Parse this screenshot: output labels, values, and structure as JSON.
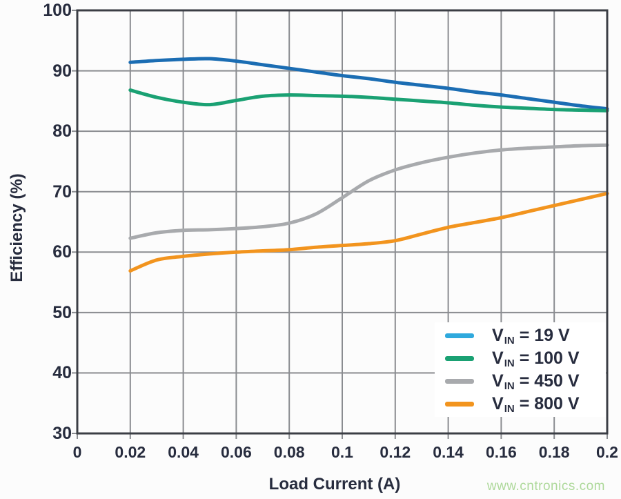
{
  "watermark": "www.cntronics.com",
  "axis": {
    "x_title": "Load Current (A)",
    "y_title": "Efficiency (%)"
  },
  "legend": {
    "items": [
      {
        "prefix": "V",
        "sub": "IN",
        "rest": "= 19 V",
        "swatch_color": "#2fa9dd"
      },
      {
        "prefix": "V",
        "sub": "IN",
        "rest": "= 100 V",
        "swatch_color": "#1aa173"
      },
      {
        "prefix": "V",
        "sub": "IN",
        "rest": "= 450 V",
        "swatch_color": "#a8aaad"
      },
      {
        "prefix": "V",
        "sub": "IN",
        "rest": "= 800 V",
        "swatch_color": "#f2941e"
      }
    ]
  },
  "colors": {
    "background": "#fcfcfc",
    "grid": "#8a8c90",
    "axis_border": "#3b3e45",
    "text": "#272c3e",
    "watermark_green": "#aed99b"
  },
  "chart_data": {
    "type": "line",
    "title": "",
    "xlabel": "Load Current (A)",
    "ylabel": "Efficiency (%)",
    "xlim": [
      0,
      0.2
    ],
    "ylim": [
      30,
      100
    ],
    "grid": true,
    "legend_position": "lower-right",
    "x_tick_values": [
      0,
      0.02,
      0.04,
      0.06,
      0.08,
      0.1,
      0.12,
      0.14,
      0.16,
      0.18,
      0.2
    ],
    "x_tick_labels": [
      "0",
      "0.02",
      "0.04",
      "0.06",
      "0.08",
      "0.1",
      "0.12",
      "0.14",
      "0.16",
      "0.18",
      "0.2"
    ],
    "y_tick_values": [
      30,
      40,
      50,
      60,
      70,
      80,
      90,
      100
    ],
    "y_tick_labels": [
      "30",
      "40",
      "50",
      "60",
      "70",
      "80",
      "90",
      "100"
    ],
    "x": [
      0.02,
      0.03,
      0.04,
      0.05,
      0.06,
      0.07,
      0.08,
      0.09,
      0.1,
      0.11,
      0.12,
      0.13,
      0.14,
      0.15,
      0.16,
      0.17,
      0.18,
      0.19,
      0.2
    ],
    "series": [
      {
        "name": "VIN = 19 V",
        "color": "#1b6db3",
        "values": [
          91.4,
          91.7,
          91.9,
          92.0,
          91.6,
          91.0,
          90.4,
          89.8,
          89.2,
          88.7,
          88.1,
          87.6,
          87.1,
          86.5,
          86.0,
          85.4,
          84.8,
          84.2,
          83.7
        ]
      },
      {
        "name": "VIN = 100 V",
        "color": "#1aa173",
        "values": [
          86.8,
          85.6,
          84.8,
          84.4,
          85.1,
          85.8,
          86.0,
          85.9,
          85.8,
          85.6,
          85.3,
          85.0,
          84.7,
          84.3,
          84.0,
          83.8,
          83.6,
          83.5,
          83.4
        ]
      },
      {
        "name": "VIN = 450 V",
        "color": "#a8aaad",
        "values": [
          62.3,
          63.2,
          63.6,
          63.7,
          63.9,
          64.2,
          64.8,
          66.3,
          69.0,
          71.8,
          73.6,
          74.8,
          75.7,
          76.4,
          76.9,
          77.2,
          77.4,
          77.6,
          77.7
        ]
      },
      {
        "name": "VIN = 800 V",
        "color": "#f2941e",
        "values": [
          56.9,
          58.7,
          59.3,
          59.7,
          60.0,
          60.2,
          60.4,
          60.8,
          61.1,
          61.4,
          61.9,
          63.0,
          64.1,
          64.9,
          65.7,
          66.7,
          67.7,
          68.7,
          69.7
        ]
      }
    ]
  }
}
